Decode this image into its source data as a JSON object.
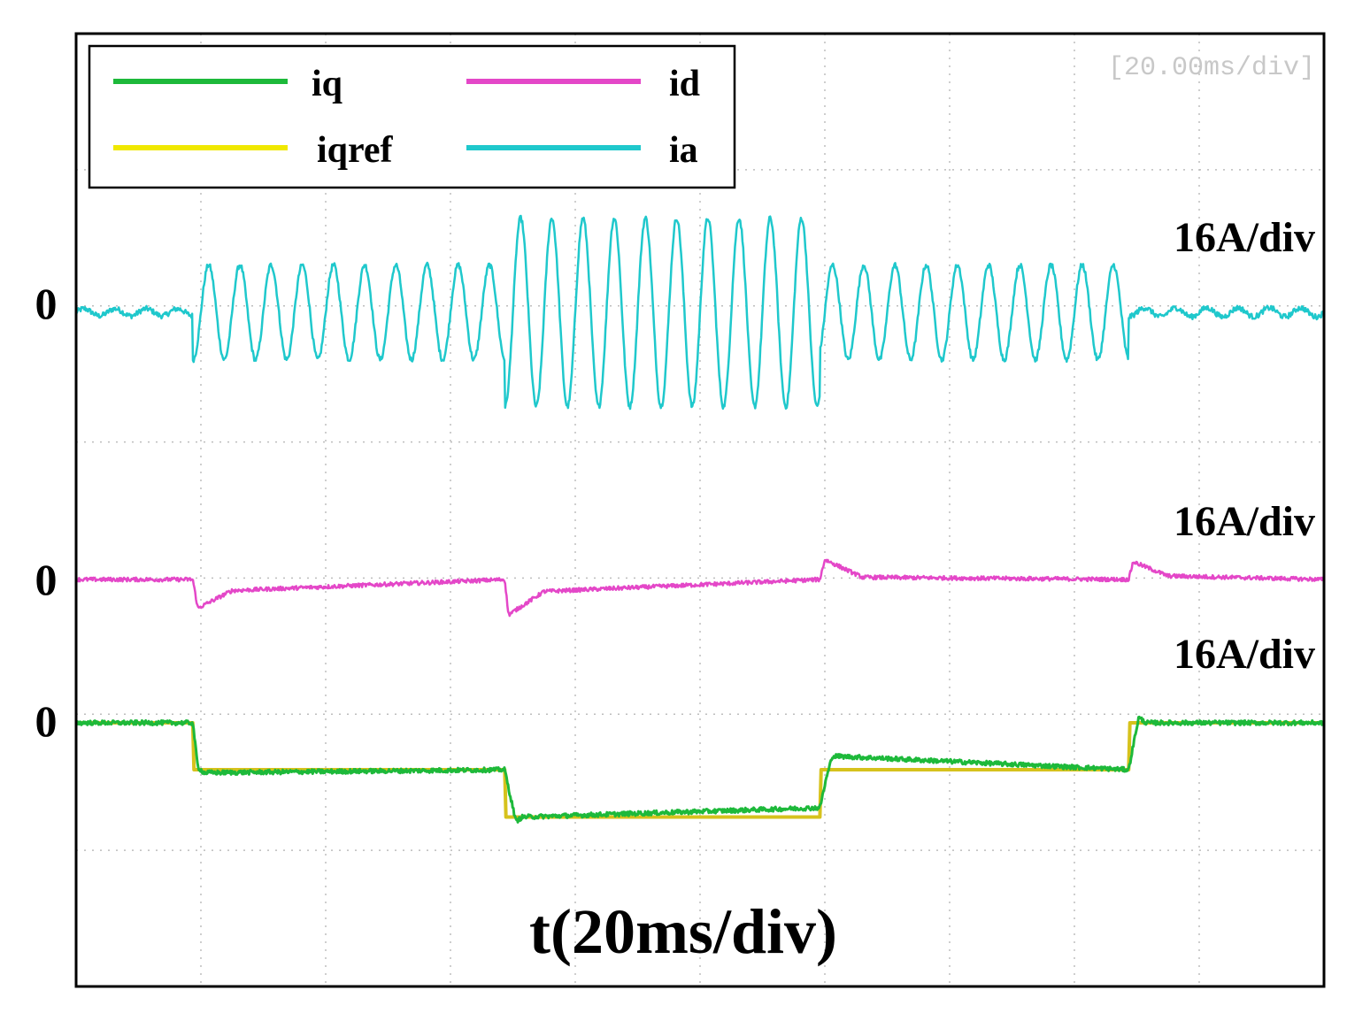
{
  "chart_data": {
    "type": "line",
    "title": "",
    "xlabel": "t(20ms/div)",
    "timebase_readout": "[20.00ms/div]",
    "x_unit": "ms",
    "xlim": [
      0,
      200
    ],
    "grid": true,
    "legend": {
      "placement": "top-left",
      "entries": [
        {
          "label": "iq",
          "color": "#1db93a"
        },
        {
          "label": "id",
          "color": "#e447c8"
        },
        {
          "label": "iqref",
          "color": "#f0e800"
        },
        {
          "label": "ia",
          "color": "#1fc8cc"
        }
      ]
    },
    "channels": [
      {
        "name": "ia",
        "scale_label": "16A/div",
        "zero_label": "0",
        "color": "#1fc8cc"
      },
      {
        "name": "id",
        "scale_label": "16A/div",
        "zero_label": "0",
        "color": "#e447c8"
      },
      {
        "name": "iq",
        "scale_label": "16A/div",
        "zero_label": "0",
        "color": "#1db93a"
      }
    ],
    "series": [
      {
        "name": "iq",
        "units": "A",
        "color": "#1db93a",
        "x": [
          0,
          18.7,
          19.5,
          20.5,
          68.7,
          69.5,
          70.5,
          71.5,
          119.2,
          120.2,
          121.2,
          168.7,
          169.3,
          170.3,
          171.5,
          200
        ],
        "y": [
          0,
          0,
          -10,
          -11.3,
          -10.6,
          -16,
          -22.3,
          -21.3,
          -19.2,
          -12.8,
          -7.5,
          -10.6,
          -6,
          1.2,
          0,
          0
        ]
      },
      {
        "name": "iqref",
        "units": "A",
        "color": "#d6c21c",
        "x": [
          0,
          18.7,
          18.9,
          68.7,
          68.9,
          119.2,
          119.4,
          168.7,
          168.9,
          200
        ],
        "y": [
          0,
          0,
          -10.6,
          -10.6,
          -21.3,
          -21.3,
          -10.6,
          -10.6,
          0,
          0
        ]
      },
      {
        "name": "id",
        "units": "A",
        "color": "#e447c8",
        "x": [
          0,
          18.7,
          19.5,
          25,
          68.7,
          69.3,
          75,
          119.2,
          120,
          126,
          168.7,
          169.4,
          175,
          200
        ],
        "y": [
          0,
          0,
          -6.5,
          -2.5,
          0,
          -8,
          -2.7,
          0,
          4.5,
          0.5,
          0,
          4,
          0.8,
          0
        ]
      },
      {
        "name": "ia",
        "units": "A",
        "color": "#1fc8cc",
        "segments": [
          {
            "t_start": 0,
            "t_end": 18.7,
            "amplitude": 0.8
          },
          {
            "t_start": 18.7,
            "t_end": 68.7,
            "amplitude": 10.7
          },
          {
            "t_start": 68.7,
            "t_end": 119.2,
            "amplitude": 21.3
          },
          {
            "t_start": 119.2,
            "t_end": 168.7,
            "amplitude": 10.7
          },
          {
            "t_start": 168.7,
            "t_end": 200,
            "amplitude": 1.0
          }
        ],
        "period_ms": 5.0
      }
    ]
  }
}
